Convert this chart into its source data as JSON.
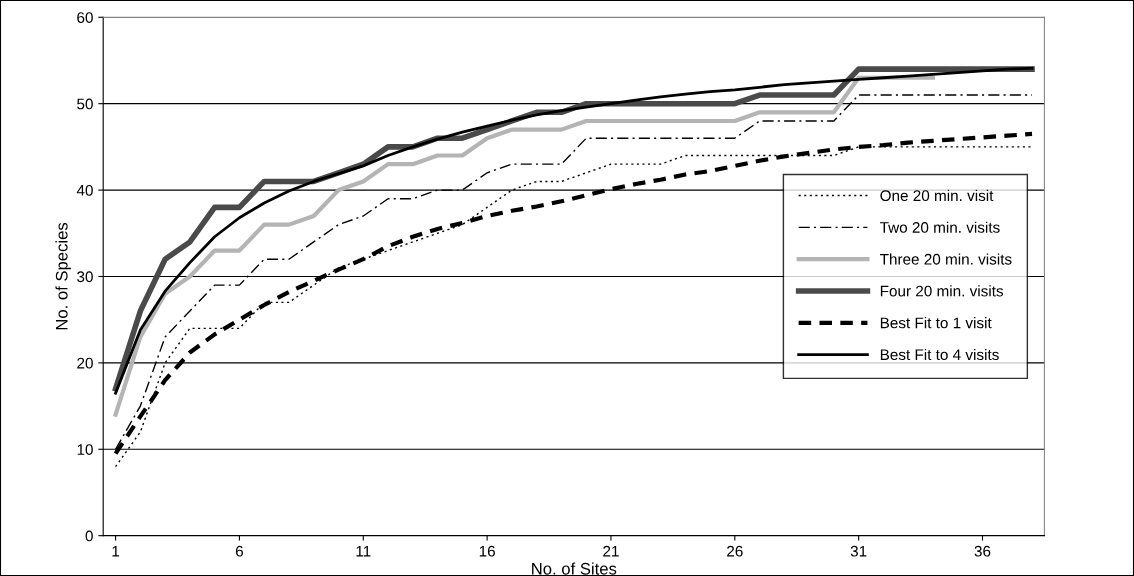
{
  "chart_data": {
    "type": "line",
    "xlabel": "No. of Sites",
    "ylabel": "No. of Species",
    "x": [
      1,
      2,
      3,
      4,
      5,
      6,
      7,
      8,
      9,
      10,
      11,
      12,
      13,
      14,
      15,
      16,
      17,
      18,
      19,
      20,
      21,
      22,
      23,
      24,
      25,
      26,
      27,
      28,
      29,
      30,
      31,
      32,
      33,
      34,
      35,
      36,
      37,
      38
    ],
    "xlim": [
      0.5,
      38.5
    ],
    "xticks": [
      1,
      6,
      11,
      16,
      21,
      26,
      31,
      36
    ],
    "ylim": [
      0,
      60
    ],
    "yticks": [
      0,
      10,
      20,
      30,
      40,
      50,
      60
    ],
    "grid": "y",
    "legend": "right",
    "marker": "none",
    "series": [
      {
        "name": "One 20 min. visit",
        "color": "#000000",
        "line_style": "dotted",
        "values": [
          8,
          12,
          20,
          24,
          24,
          24,
          27,
          27,
          29,
          31,
          32,
          33,
          34,
          35,
          36,
          38,
          40,
          41,
          41,
          42,
          43,
          43,
          43,
          44,
          44,
          44,
          44,
          44,
          44,
          44,
          45,
          45,
          45,
          45,
          45,
          45,
          45,
          45
        ]
      },
      {
        "name": "Two 20 min. visits",
        "color": "#000000",
        "line_style": "dashdot",
        "values": [
          10,
          15,
          23,
          26,
          29,
          29,
          32,
          32,
          34,
          36,
          37,
          39,
          39,
          40,
          40,
          42,
          43,
          43,
          43,
          46,
          46,
          46,
          46,
          46,
          46,
          46,
          48,
          48,
          48,
          48,
          51,
          51,
          51,
          51,
          51,
          51,
          51,
          51
        ]
      },
      {
        "name": "Three 20 min. visits",
        "color": "#b4b4b4",
        "line_style": "solid",
        "values": [
          14,
          23,
          28,
          30,
          33,
          33,
          36,
          36,
          37,
          40,
          41,
          43,
          43,
          44,
          44,
          46,
          47,
          47,
          47,
          48,
          48,
          48,
          48,
          48,
          48,
          48,
          49,
          49,
          49,
          49,
          53,
          53,
          53,
          53,
          null,
          null,
          null,
          null
        ]
      },
      {
        "name": "Four 20 min. visits",
        "color": "#4a4a4a",
        "line_style": "solid",
        "values": [
          17,
          26,
          32,
          34,
          38,
          38,
          41,
          41,
          41,
          42,
          43,
          45,
          45,
          46,
          46,
          47,
          48,
          49,
          49,
          50,
          50,
          50,
          50,
          50,
          50,
          50,
          51,
          51,
          51,
          51,
          54,
          54,
          54,
          54,
          54,
          54,
          54,
          54
        ]
      },
      {
        "name": "Best Fit to 1 visit",
        "color": "#000000",
        "line_style": "dashed",
        "values": [
          9.5,
          13.8,
          18.0,
          21.2,
          23.3,
          25.0,
          26.7,
          28.2,
          29.5,
          30.8,
          32.0,
          33.5,
          34.6,
          35.5,
          36.2,
          37.0,
          37.6,
          38.1,
          38.7,
          39.4,
          40.1,
          40.7,
          41.2,
          41.8,
          42.2,
          42.8,
          43.4,
          43.9,
          44.3,
          44.7,
          45.0,
          45.2,
          45.5,
          45.7,
          45.9,
          46.1,
          46.3,
          46.5
        ]
      },
      {
        "name": "Best Fit to 4 visits",
        "color": "#000000",
        "line_style": "solid",
        "values": [
          16.5,
          23.8,
          28.3,
          31.6,
          34.6,
          36.8,
          38.5,
          39.9,
          41.0,
          41.9,
          42.8,
          44.0,
          45.0,
          45.9,
          46.7,
          47.4,
          48.1,
          48.7,
          49.2,
          49.6,
          50.0,
          50.4,
          50.8,
          51.1,
          51.4,
          51.6,
          51.9,
          52.2,
          52.4,
          52.6,
          52.8,
          53.0,
          53.2,
          53.4,
          53.6,
          53.8,
          54.0,
          54.1
        ]
      }
    ]
  }
}
